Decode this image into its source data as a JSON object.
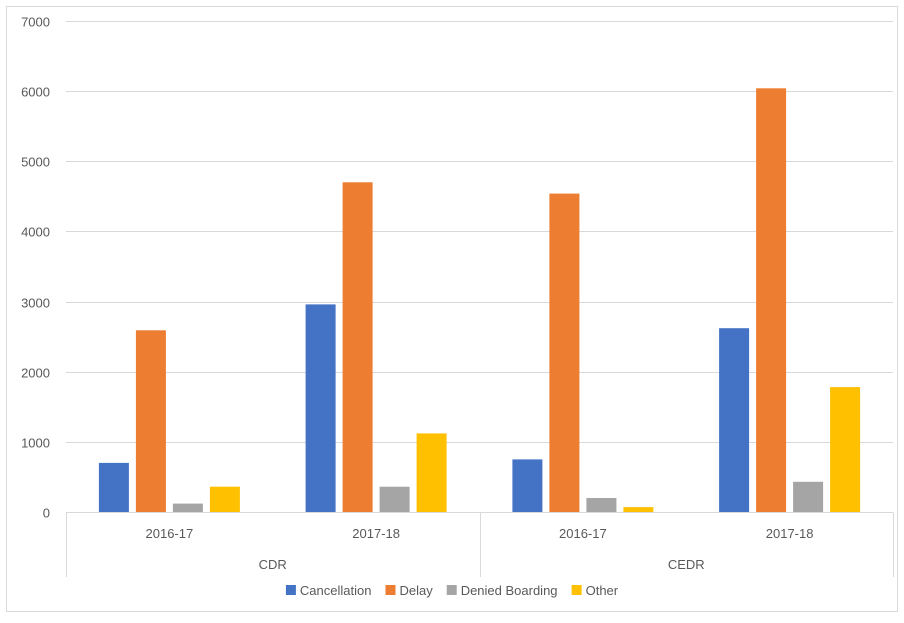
{
  "chart_data": {
    "type": "bar",
    "title": "",
    "xlabel": "",
    "ylabel": "",
    "ylim": [
      0,
      7000
    ],
    "yticks": [
      0,
      1000,
      2000,
      3000,
      4000,
      5000,
      6000,
      7000
    ],
    "grid": true,
    "legend_position": "bottom",
    "groups": [
      {
        "label": "CDR",
        "categories": [
          "2016-17",
          "2017-18"
        ]
      },
      {
        "label": "CEDR",
        "categories": [
          "2016-17",
          "2017-18"
        ]
      }
    ],
    "series": [
      {
        "name": "Cancellation",
        "color": "#4472C4",
        "values": [
          700,
          2960,
          750,
          2620
        ]
      },
      {
        "name": "Delay",
        "color": "#ED7D31",
        "values": [
          2590,
          4700,
          4540,
          6040
        ]
      },
      {
        "name": "Denied Boarding",
        "color": "#A5A5A5",
        "values": [
          120,
          360,
          200,
          430
        ]
      },
      {
        "name": "Other",
        "color": "#FFC000",
        "values": [
          360,
          1120,
          70,
          1780
        ]
      }
    ]
  }
}
